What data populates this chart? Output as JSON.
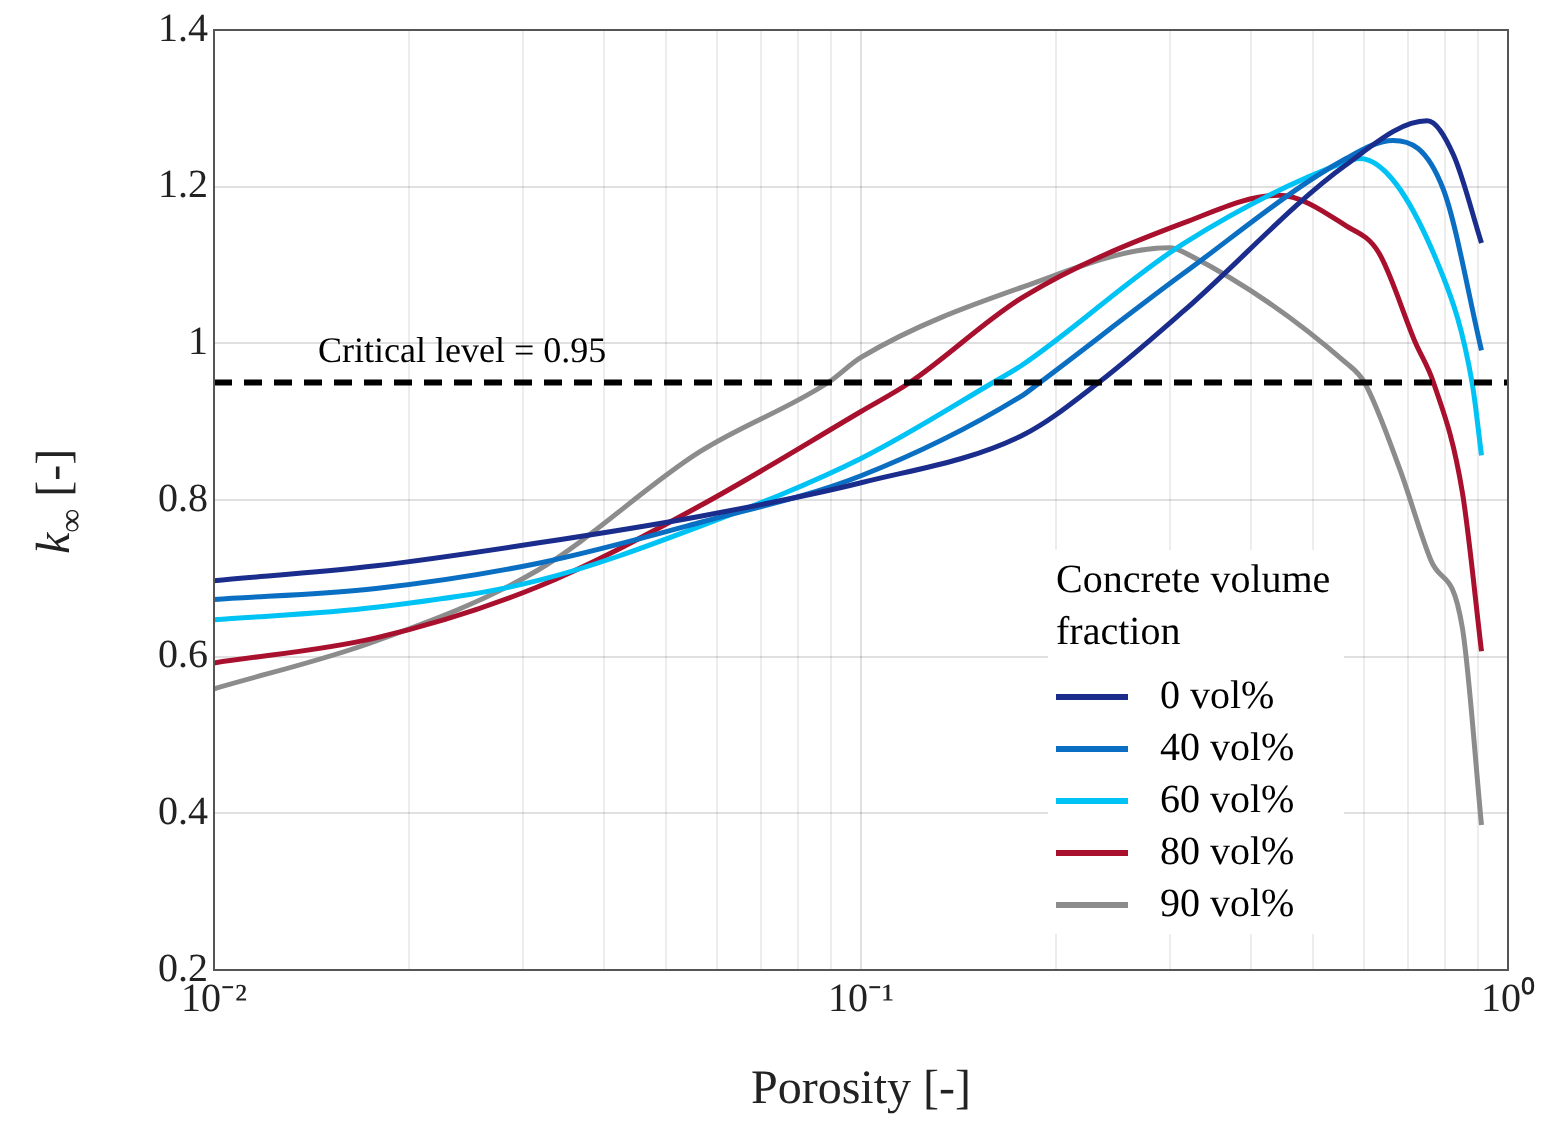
{
  "chart_data": {
    "type": "line",
    "xlabel": "Porosity [-]",
    "ylabel": "k$_{∞}$ [-]",
    "legend_title": "Concrete volume fraction",
    "log": "x",
    "grid": true,
    "legend": "bottom right",
    "line_style": "solid",
    "marker": "none",
    "xlim": [
      0.01,
      1
    ],
    "ylim": [
      0.2,
      1.4
    ],
    "xticks": [
      {
        "value": 0.01,
        "label": "10⁻²"
      },
      {
        "value": 0.02,
        "label": null
      },
      {
        "value": 0.03,
        "label": null
      },
      {
        "value": 0.04,
        "label": null
      },
      {
        "value": 0.05,
        "label": null
      },
      {
        "value": 0.06,
        "label": null
      },
      {
        "value": 0.07,
        "label": null
      },
      {
        "value": 0.08,
        "label": null
      },
      {
        "value": 0.09,
        "label": null
      },
      {
        "value": 0.1,
        "label": "10⁻¹"
      },
      {
        "value": 0.2,
        "label": null
      },
      {
        "value": 0.3,
        "label": null
      },
      {
        "value": 0.4,
        "label": null
      },
      {
        "value": 0.5,
        "label": null
      },
      {
        "value": 0.6,
        "label": null
      },
      {
        "value": 0.7,
        "label": null
      },
      {
        "value": 0.8,
        "label": null
      },
      {
        "value": 0.9,
        "label": null
      },
      {
        "value": 1,
        "label": "10⁰"
      }
    ],
    "yticks": [
      0.2,
      0.4,
      0.6,
      0.8,
      1,
      1.2,
      1.4
    ],
    "ref_lines": [
      {
        "axis": "y",
        "value": 0.95,
        "label": "Critical level = 0.95",
        "color": "#000000",
        "line_style": "dashed"
      }
    ],
    "series": [
      {
        "name": "0 vol%",
        "color": "#1a2d8c",
        "x": [
          0.01,
          0.0178,
          0.0316,
          0.0562,
          0.1,
          0.178,
          0.233,
          0.316,
          0.562,
          0.75,
          0.824,
          0.91
        ],
        "values": [
          0.697,
          0.716,
          0.745,
          0.779,
          0.822,
          0.883,
          0.95,
          1.042,
          1.228,
          1.284,
          1.24,
          1.128
        ]
      },
      {
        "name": "40 vol%",
        "color": "#0a6fc2",
        "x": [
          0.01,
          0.0178,
          0.0316,
          0.0562,
          0.1,
          0.178,
          0.189,
          0.316,
          0.562,
          0.664,
          0.794,
          0.91
        ],
        "values": [
          0.673,
          0.687,
          0.719,
          0.771,
          0.831,
          0.934,
          0.95,
          1.09,
          1.236,
          1.259,
          1.197,
          0.991
        ]
      },
      {
        "name": "60 vol%",
        "color": "#00c3f5",
        "x": [
          0.01,
          0.0178,
          0.0316,
          0.0562,
          0.1,
          0.16,
          0.178,
          0.316,
          0.562,
          0.589,
          0.794,
          0.88,
          0.91
        ],
        "values": [
          0.647,
          0.663,
          0.697,
          0.766,
          0.853,
          0.95,
          0.973,
          1.128,
          1.232,
          1.236,
          1.085,
          0.95,
          0.857
        ]
      },
      {
        "name": "80 vol%",
        "color": "#a8102e",
        "x": [
          0.01,
          0.0178,
          0.0316,
          0.0562,
          0.1,
          0.119,
          0.178,
          0.316,
          0.442,
          0.562,
          0.631,
          0.72,
          0.767,
          0.85,
          0.91
        ],
        "values": [
          0.592,
          0.624,
          0.689,
          0.792,
          0.913,
          0.95,
          1.059,
          1.154,
          1.189,
          1.15,
          1.116,
          1.0,
          0.95,
          0.81,
          0.607
        ]
      },
      {
        "name": "90 vol%",
        "color": "#8c8c8c",
        "x": [
          0.01,
          0.0178,
          0.0316,
          0.0562,
          0.089,
          0.1,
          0.178,
          0.3,
          0.316,
          0.562,
          0.6,
          0.68,
          0.76,
          0.85,
          0.91
        ],
        "values": [
          0.559,
          0.62,
          0.71,
          0.861,
          0.95,
          0.982,
          1.072,
          1.122,
          1.116,
          0.975,
          0.95,
          0.84,
          0.723,
          0.637,
          0.385
        ]
      }
    ]
  }
}
